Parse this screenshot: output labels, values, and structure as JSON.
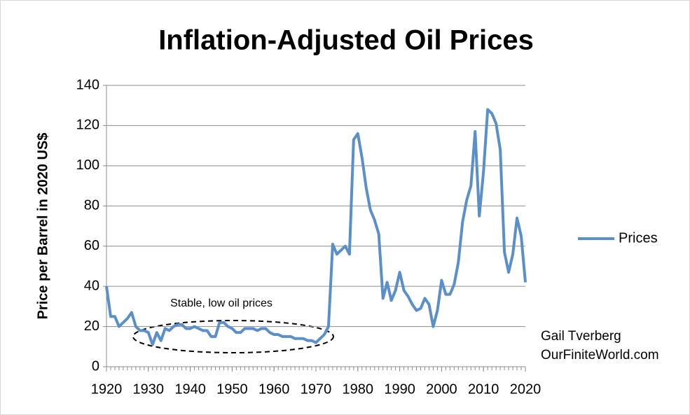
{
  "chart_data": {
    "type": "line",
    "title": "Inflation-Adjusted Oil Prices",
    "ylabel": "Price per Barrel in 2020 US$",
    "annotations": [
      "Stable, low oil prices",
      "Gail Tverberg",
      "OurFiniteWorld.com"
    ],
    "x": [
      1920,
      1921,
      1922,
      1923,
      1924,
      1925,
      1926,
      1927,
      1928,
      1929,
      1930,
      1931,
      1932,
      1933,
      1934,
      1935,
      1936,
      1937,
      1938,
      1939,
      1940,
      1941,
      1942,
      1943,
      1944,
      1945,
      1946,
      1947,
      1948,
      1949,
      1950,
      1951,
      1952,
      1953,
      1954,
      1955,
      1956,
      1957,
      1958,
      1959,
      1960,
      1961,
      1962,
      1963,
      1964,
      1965,
      1966,
      1967,
      1968,
      1969,
      1970,
      1971,
      1972,
      1973,
      1974,
      1975,
      1976,
      1977,
      1978,
      1979,
      1980,
      1981,
      1982,
      1983,
      1984,
      1985,
      1986,
      1987,
      1988,
      1989,
      1990,
      1991,
      1992,
      1993,
      1994,
      1995,
      1996,
      1997,
      1998,
      1999,
      2000,
      2001,
      2002,
      2003,
      2004,
      2005,
      2006,
      2007,
      2008,
      2009,
      2010,
      2011,
      2012,
      2013,
      2014,
      2015,
      2016,
      2017,
      2018,
      2019,
      2020
    ],
    "series": [
      {
        "name": "Prices",
        "color": "#5b8fc9",
        "values": [
          40,
          25,
          25,
          20,
          22,
          24,
          27,
          20,
          18,
          18,
          17,
          11,
          17,
          13,
          19,
          18,
          20,
          21,
          21,
          19,
          19,
          20,
          19,
          18,
          18,
          15,
          15,
          22,
          22,
          20,
          19,
          17,
          17,
          19,
          19,
          19,
          18,
          19,
          19,
          17,
          16,
          16,
          15,
          15,
          15,
          14,
          14,
          14,
          13,
          13,
          12,
          14,
          16,
          20,
          61,
          56,
          58,
          60,
          56,
          113,
          116,
          104,
          89,
          78,
          73,
          66,
          34,
          42,
          33,
          38,
          47,
          38,
          35,
          31,
          28,
          29,
          34,
          31,
          20,
          28,
          43,
          36,
          36,
          41,
          52,
          72,
          83,
          90,
          117,
          75,
          97,
          128,
          126,
          121,
          108,
          57,
          47,
          56,
          74,
          65,
          42
        ]
      }
    ],
    "xlim": [
      1920,
      2020
    ],
    "xticks": [
      1920,
      1930,
      1940,
      1950,
      1960,
      1970,
      1980,
      1990,
      2000,
      2010,
      2020
    ],
    "ylim": [
      0,
      140
    ],
    "yticks": [
      0,
      20,
      40,
      60,
      80,
      100,
      120,
      140
    ],
    "grid": true,
    "legend": "right"
  }
}
